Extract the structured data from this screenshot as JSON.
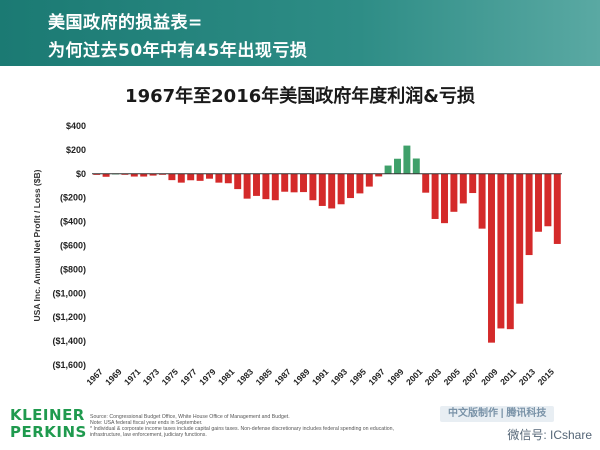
{
  "header": {
    "line1": "美国政府的损益表=",
    "line2": "为何过去50年中有45年出现亏损"
  },
  "chart_data": {
    "type": "bar",
    "title": "1967年至2016年美国政府年度利润&亏损",
    "ylabel": "USA Inc. Annual Net Profit / Loss ($B)",
    "ylim": [
      -1600,
      400
    ],
    "yticks": [
      400,
      200,
      0,
      -200,
      -400,
      -600,
      -800,
      -1000,
      -1200,
      -1400,
      -1600
    ],
    "ytick_labels": [
      "$400",
      "$200",
      "$0",
      "($200)",
      "($400)",
      "($600)",
      "($800)",
      "($1,000)",
      "($1,200)",
      "($1,400)",
      "($1,600)"
    ],
    "xtick_labels": [
      "1967",
      "1969",
      "1971",
      "1973",
      "1975",
      "1977",
      "1979",
      "1981",
      "1983",
      "1985",
      "1987",
      "1989",
      "1991",
      "1993",
      "1995",
      "1997",
      "1999",
      "2001",
      "2003",
      "2005",
      "2007",
      "2009",
      "2011",
      "2013",
      "2015"
    ],
    "categories": [
      "1967",
      "1968",
      "1969",
      "1970",
      "1971",
      "1972",
      "1973",
      "1974",
      "1975",
      "1976",
      "1977",
      "1978",
      "1979",
      "1980",
      "1981",
      "1982",
      "1983",
      "1984",
      "1985",
      "1986",
      "1987",
      "1988",
      "1989",
      "1990",
      "1991",
      "1992",
      "1993",
      "1994",
      "1995",
      "1996",
      "1997",
      "1998",
      "1999",
      "2000",
      "2001",
      "2002",
      "2003",
      "2004",
      "2005",
      "2006",
      "2007",
      "2008",
      "2009",
      "2010",
      "2011",
      "2012",
      "2013",
      "2014",
      "2015",
      "2016"
    ],
    "values": [
      -9,
      -25,
      3,
      -3,
      -23,
      -23,
      -15,
      -6,
      -53,
      -74,
      -54,
      -59,
      -41,
      -74,
      -79,
      -128,
      -208,
      -185,
      -212,
      -221,
      -150,
      -155,
      -153,
      -221,
      -269,
      -290,
      -255,
      -203,
      -164,
      -107,
      -22,
      69,
      126,
      236,
      128,
      -158,
      -378,
      -413,
      -318,
      -248,
      -161,
      -459,
      -1413,
      -1294,
      -1300,
      -1087,
      -680,
      -485,
      -439,
      -587
    ],
    "colors": {
      "positive": "#3fa06a",
      "negative": "#d42a2a"
    },
    "grid": false
  },
  "footer": {
    "logo_line1": "KLEINER",
    "logo_line2": "PERKINS",
    "source": "Source: Congressional Budget Office, White House Office of Management and Budget.",
    "note1": "Note: USA federal fiscal year ends in September.",
    "note2": "* Individual & corporate income taxes include capital gains taxes. Non-defense discretionary includes federal spending on education,",
    "note3": "infrastructure, law enforcement, judiciary functions.",
    "watermark_badge": "中文版制作 | 腾讯科技",
    "watermark_account": "微信号: ICshare"
  }
}
